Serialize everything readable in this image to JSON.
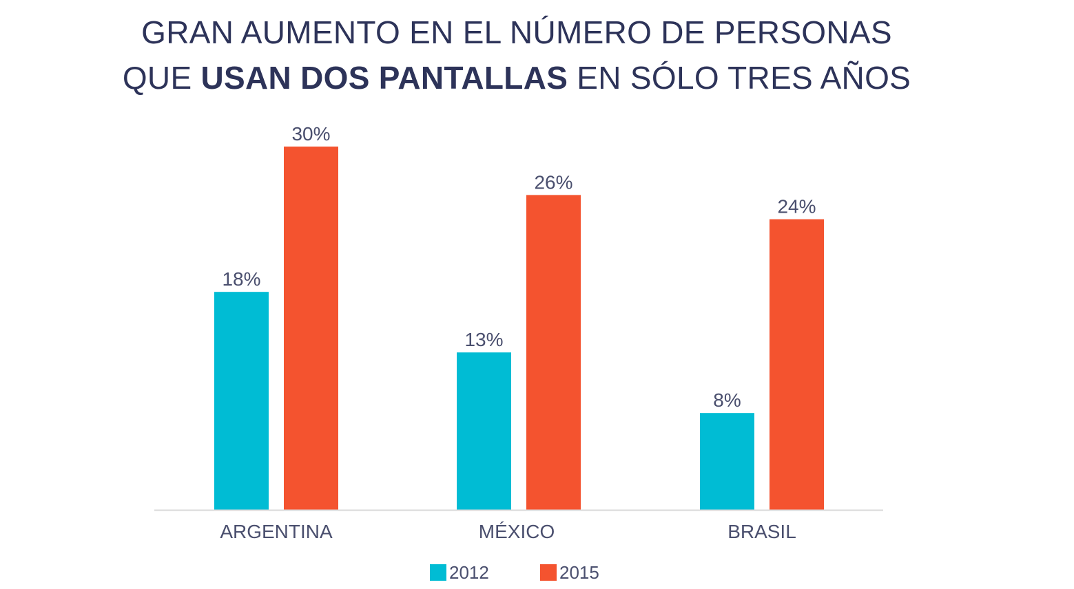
{
  "title": {
    "line1": "GRAN AUMENTO EN EL NÚMERO DE PERSONAS",
    "line2_pre": "QUE ",
    "line2_bold": "USAN DOS PANTALLAS",
    "line2_post": " EN SÓLO TRES AÑOS"
  },
  "colors": {
    "series_2012": "#00bcd4",
    "series_2015": "#f4532f",
    "text": "#4a4f6e",
    "axis": "#d9d9d9"
  },
  "chart_data": {
    "type": "bar",
    "title": "GRAN AUMENTO EN EL NÚMERO DE PERSONAS QUE USAN DOS PANTALLAS EN SÓLO TRES AÑOS",
    "categories": [
      "ARGENTINA",
      "MÉXICO",
      "BRASIL"
    ],
    "series": [
      {
        "name": "2012",
        "values": [
          18,
          13,
          8
        ],
        "labels": [
          "18%",
          "13%",
          "8%"
        ]
      },
      {
        "name": "2015",
        "values": [
          30,
          26,
          24
        ],
        "labels": [
          "30%",
          "26%",
          "24%"
        ]
      }
    ],
    "ylim": [
      0,
      30
    ],
    "grid": false,
    "legend_position": "bottom"
  }
}
